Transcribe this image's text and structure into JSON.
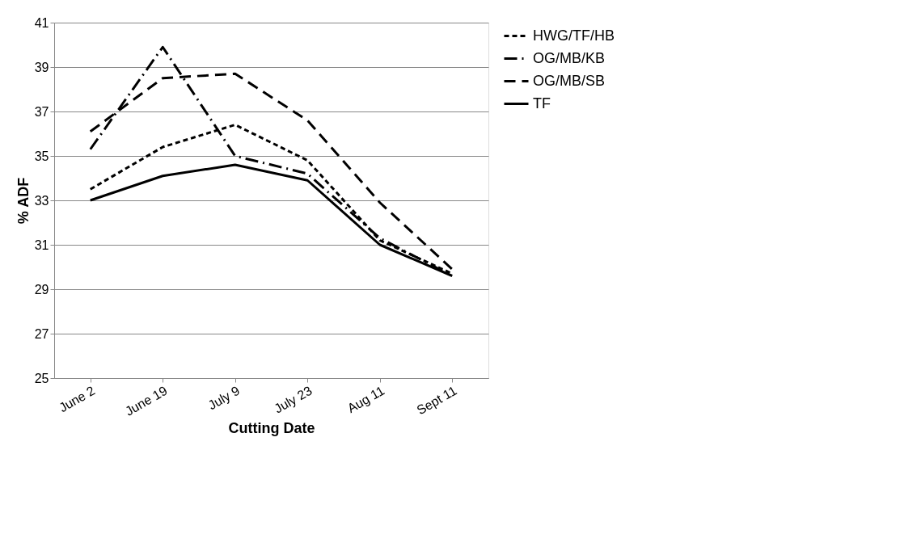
{
  "chart_data": {
    "type": "line",
    "xlabel": "Cutting Date",
    "ylabel": "% ADF",
    "categories": [
      "June 2",
      "June 19",
      "July 9",
      "July 23",
      "Aug 11",
      "Sept 11"
    ],
    "series": [
      {
        "name": "HWG/TF/HB",
        "color": "#000000",
        "line_style": "dotted",
        "values": [
          33.5,
          35.4,
          36.4,
          34.8,
          31.2,
          29.7
        ]
      },
      {
        "name": "OG/MB/KB",
        "color": "#000000",
        "line_style": "dashdot",
        "values": [
          35.3,
          39.9,
          35.0,
          34.2,
          31.3,
          29.6
        ]
      },
      {
        "name": "OG/MB/SB",
        "color": "#000000",
        "line_style": "dashed",
        "values": [
          36.1,
          38.5,
          38.7,
          36.6,
          32.9,
          29.9
        ]
      },
      {
        "name": "TF",
        "color": "#000000",
        "line_style": "solid",
        "values": [
          33.0,
          34.1,
          34.6,
          33.9,
          31.0,
          29.6
        ]
      }
    ],
    "ylim": [
      25,
      41
    ],
    "yticks": [
      25,
      27,
      29,
      31,
      33,
      35,
      37,
      39,
      41
    ],
    "grid": "y",
    "legend": "right",
    "marker": "none"
  }
}
